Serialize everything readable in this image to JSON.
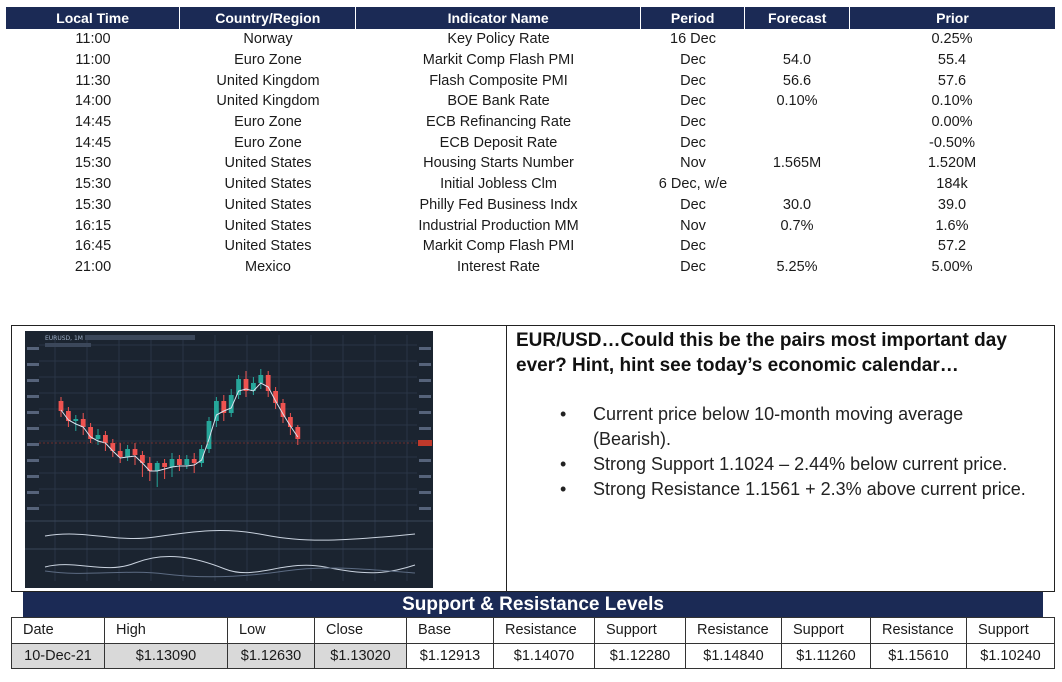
{
  "calendar": {
    "headers": [
      "Local Time",
      "Country/Region",
      "Indicator Name",
      "Period",
      "Forecast",
      "Prior"
    ],
    "rows": [
      [
        "11:00",
        "Norway",
        "Key Policy Rate",
        "16 Dec",
        "",
        "0.25%"
      ],
      [
        "11:00",
        "Euro Zone",
        "Markit Comp Flash PMI",
        "Dec",
        "54.0",
        "55.4"
      ],
      [
        "11:30",
        "United Kingdom",
        "Flash Composite PMI",
        "Dec",
        "56.6",
        "57.6"
      ],
      [
        "14:00",
        "United Kingdom",
        "BOE Bank Rate",
        "Dec",
        "0.10%",
        "0.10%"
      ],
      [
        "14:45",
        "Euro Zone",
        "ECB Refinancing Rate",
        "Dec",
        "",
        "0.00%"
      ],
      [
        "14:45",
        "Euro Zone",
        "ECB Deposit Rate",
        "Dec",
        "",
        "-0.50%"
      ],
      [
        "15:30",
        "United States",
        "Housing Starts Number",
        "Nov",
        "1.565M",
        "1.520M"
      ],
      [
        "15:30",
        "United States",
        "Initial Jobless Clm",
        "6 Dec, w/e",
        "",
        "184k"
      ],
      [
        "15:30",
        "United States",
        "Philly Fed Business Indx",
        "Dec",
        "30.0",
        "39.0"
      ],
      [
        "16:15",
        "United States",
        "Industrial Production MM",
        "Nov",
        "0.7%",
        "1.6%"
      ],
      [
        "16:45",
        "United States",
        "Markit Comp Flash PMI",
        "Dec",
        "",
        "57.2"
      ],
      [
        "21:00",
        "Mexico",
        "Interest Rate",
        "Dec",
        "5.25%",
        "5.00%"
      ]
    ]
  },
  "chart_thumbnail": {
    "symbol_label": "EURUSD, 1M"
  },
  "analysis": {
    "title": "EUR/USD…Could this be the pairs most important day ever? Hint, hint see today’s economic calendar…",
    "bullet_symbol": "•",
    "bullets": [
      "Current price below 10-month moving average (Bearish).",
      "Strong Support 1.1024 – 2.44% below current price.",
      "Strong Resistance 1.1561 + 2.3% above current price."
    ]
  },
  "levels": {
    "title": "Support & Resistance Levels",
    "headers": [
      "Date",
      "High",
      "Low",
      "Close",
      "Base",
      "Resistance",
      "Support",
      "Resistance",
      "Support",
      "Resistance",
      "Support"
    ],
    "values": [
      "10-Dec-21",
      "$1.13090",
      "$1.12630",
      "$1.13020",
      "$1.12913",
      "$1.14070",
      "$1.12280",
      "$1.14840",
      "$1.11260",
      "$1.15610",
      "$1.10240"
    ]
  },
  "colors": {
    "header_navy": "#1b2a55",
    "chart_bg": "#1b2430",
    "candle_up": "#26a69a",
    "candle_down": "#ef5350",
    "shaded_cell": "#d9d9d9"
  }
}
